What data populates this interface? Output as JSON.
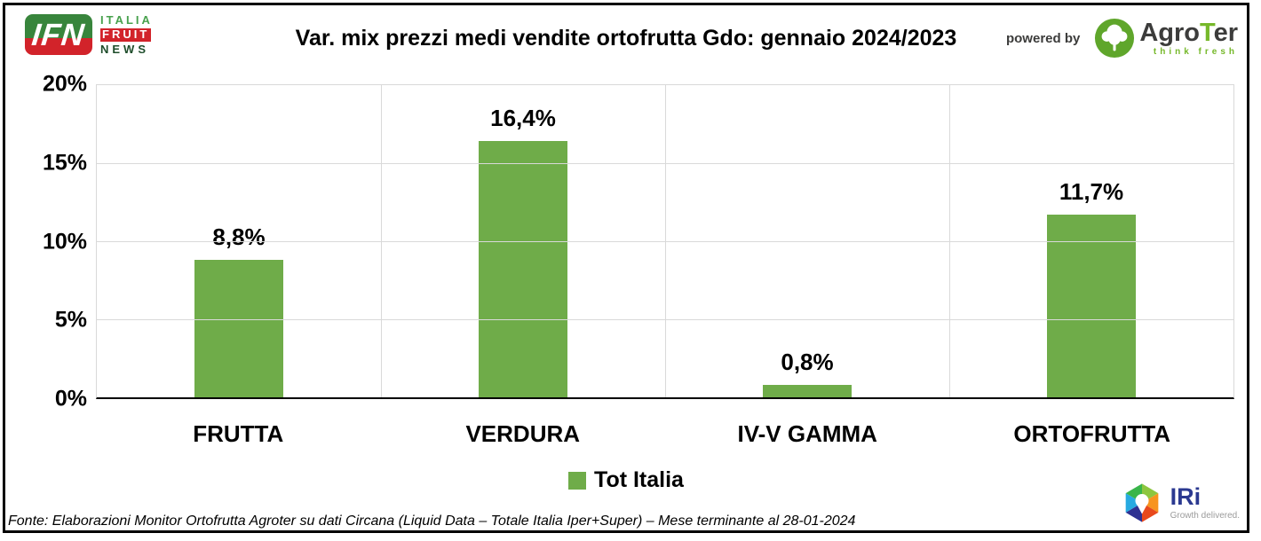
{
  "header": {
    "ifn": {
      "abbr": "IFN",
      "lines": [
        "ITALIA",
        "FRUIT",
        "NEWS"
      ]
    },
    "title": "Var. mix prezzi medi vendite ortofrutta Gdo: gennaio 2024/2023",
    "powered_by": "powered by",
    "agroter": {
      "parts": [
        "Agro",
        "T",
        "er"
      ],
      "tagline": "think fresh"
    }
  },
  "chart_data": {
    "type": "bar",
    "title": "Var. mix prezzi medi vendite ortofrutta Gdo: gennaio 2024/2023",
    "categories": [
      "FRUTTA",
      "VERDURA",
      "IV-V GAMMA",
      "ORTOFRUTTA"
    ],
    "series": [
      {
        "name": "Tot Italia",
        "values": [
          8.8,
          16.4,
          0.8,
          11.7
        ]
      }
    ],
    "value_labels": [
      "8,8%",
      "16,4%",
      "0,8%",
      "11,7%"
    ],
    "y_ticks": [
      "20%",
      "15%",
      "10%",
      "5%",
      "0%"
    ],
    "ylim": [
      0,
      20
    ],
    "grid": true,
    "legend_position": "bottom",
    "bar_color": "#6FAC49",
    "gridline_color": "#D9D9D9"
  },
  "legend": {
    "label": "Tot Italia"
  },
  "footer": {
    "source": "Fonte: Elaborazioni Monitor Ortofrutta Agroter su dati Circana (Liquid Data – Totale Italia Iper+Super) – Mese terminante al 28-01-2024",
    "iri": {
      "name": "IRi",
      "tagline": "Growth delivered."
    }
  }
}
